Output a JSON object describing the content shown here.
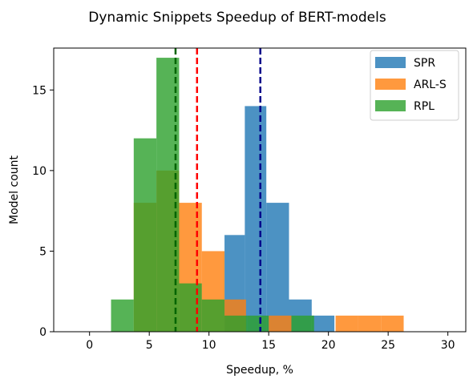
{
  "chart_data": {
    "type": "bar",
    "title": "Dynamic Snippets Speedup of BERT-models",
    "xlabel": "Speedup, %",
    "ylabel": "Model count",
    "xlim": [
      -3,
      31.5
    ],
    "ylim": [
      0,
      17.6
    ],
    "xticks": [
      0,
      5,
      10,
      15,
      20,
      25,
      30
    ],
    "yticks": [
      0,
      5,
      10,
      15
    ],
    "legend_position": "top-right",
    "series": [
      {
        "name": "SPR",
        "color": "#1f77b4",
        "bins": [
          {
            "x0": 9.0,
            "x1": 11.3,
            "count": 0
          },
          {
            "x0": 11.3,
            "x1": 13.0,
            "count": 6
          },
          {
            "x0": 13.0,
            "x1": 14.8,
            "count": 14
          },
          {
            "x0": 14.8,
            "x1": 16.7,
            "count": 8
          },
          {
            "x0": 16.7,
            "x1": 18.6,
            "count": 2
          },
          {
            "x0": 18.6,
            "x1": 20.5,
            "count": 1
          }
        ]
      },
      {
        "name": "ARL-S",
        "color": "#ff7f0e",
        "bins": [
          {
            "x0": 3.7,
            "x1": 5.6,
            "count": 8
          },
          {
            "x0": 5.6,
            "x1": 7.5,
            "count": 10
          },
          {
            "x0": 7.5,
            "x1": 9.4,
            "count": 8
          },
          {
            "x0": 9.4,
            "x1": 11.3,
            "count": 5
          },
          {
            "x0": 11.3,
            "x1": 13.1,
            "count": 2
          },
          {
            "x0": 13.1,
            "x1": 15.0,
            "count": 0
          },
          {
            "x0": 15.0,
            "x1": 16.9,
            "count": 1
          },
          {
            "x0": 16.9,
            "x1": 18.8,
            "count": 0
          },
          {
            "x0": 18.8,
            "x1": 20.6,
            "count": 0
          },
          {
            "x0": 20.6,
            "x1": 22.5,
            "count": 1
          },
          {
            "x0": 22.5,
            "x1": 24.4,
            "count": 1
          },
          {
            "x0": 24.4,
            "x1": 26.3,
            "count": 1
          }
        ]
      },
      {
        "name": "RPL",
        "color": "#2ca02c",
        "bins": [
          {
            "x0": 1.8,
            "x1": 3.7,
            "count": 2
          },
          {
            "x0": 3.7,
            "x1": 5.6,
            "count": 12
          },
          {
            "x0": 5.6,
            "x1": 7.5,
            "count": 17
          },
          {
            "x0": 7.5,
            "x1": 9.4,
            "count": 3
          },
          {
            "x0": 9.4,
            "x1": 11.3,
            "count": 2
          },
          {
            "x0": 11.3,
            "x1": 13.2,
            "count": 1
          },
          {
            "x0": 13.2,
            "x1": 15.0,
            "count": 1
          },
          {
            "x0": 15.0,
            "x1": 16.9,
            "count": 0
          },
          {
            "x0": 16.9,
            "x1": 18.8,
            "count": 1
          }
        ]
      }
    ],
    "mean_lines": [
      {
        "series": "RPL",
        "x": 7.2,
        "color": "#006400"
      },
      {
        "series": "ARL-S",
        "x": 9.0,
        "color": "#ff0000"
      },
      {
        "series": "SPR",
        "x": 14.3,
        "color": "#00008b"
      }
    ]
  }
}
